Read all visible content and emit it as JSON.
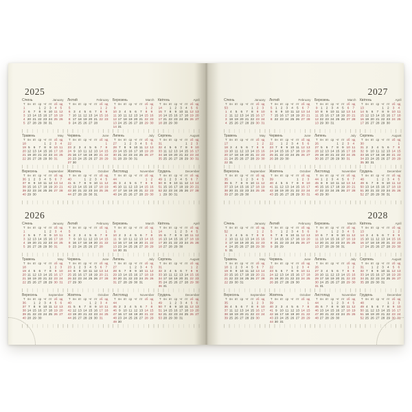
{
  "pages": [
    {
      "side": "left",
      "years": [
        {
          "year": 2025,
          "label": "2025"
        },
        {
          "year": 2026,
          "label": "2026"
        }
      ]
    },
    {
      "side": "right",
      "years": [
        {
          "year": 2027,
          "label": "2027"
        },
        {
          "year": 2028,
          "label": "2028"
        }
      ]
    }
  ],
  "calendar": {
    "week_column_header": "Т",
    "weekday_headers": [
      "пн",
      "вт",
      "ср",
      "чт",
      "пт",
      "сб",
      "нд"
    ],
    "months": [
      {
        "ua": "Січень",
        "en": "January"
      },
      {
        "ua": "Лютий",
        "en": "February"
      },
      {
        "ua": "Березень",
        "en": "March"
      },
      {
        "ua": "Квітень",
        "en": "April"
      },
      {
        "ua": "Травень",
        "en": "May"
      },
      {
        "ua": "Червень",
        "en": "June"
      },
      {
        "ua": "Липень",
        "en": "July"
      },
      {
        "ua": "Серпень",
        "en": "August"
      },
      {
        "ua": "Вересень",
        "en": "September"
      },
      {
        "ua": "Жовтень",
        "en": "October"
      },
      {
        "ua": "Листопад",
        "en": "November"
      },
      {
        "ua": "Грудень",
        "en": "December"
      }
    ]
  },
  "colors": {
    "page_background": "#f6f4e9",
    "text": "#4b483e",
    "weekend": "#a3494e",
    "week_number": "#a3494e",
    "month_name": "#5c5849",
    "tick": "#cac7b8",
    "year_title": "#3f3c33"
  }
}
